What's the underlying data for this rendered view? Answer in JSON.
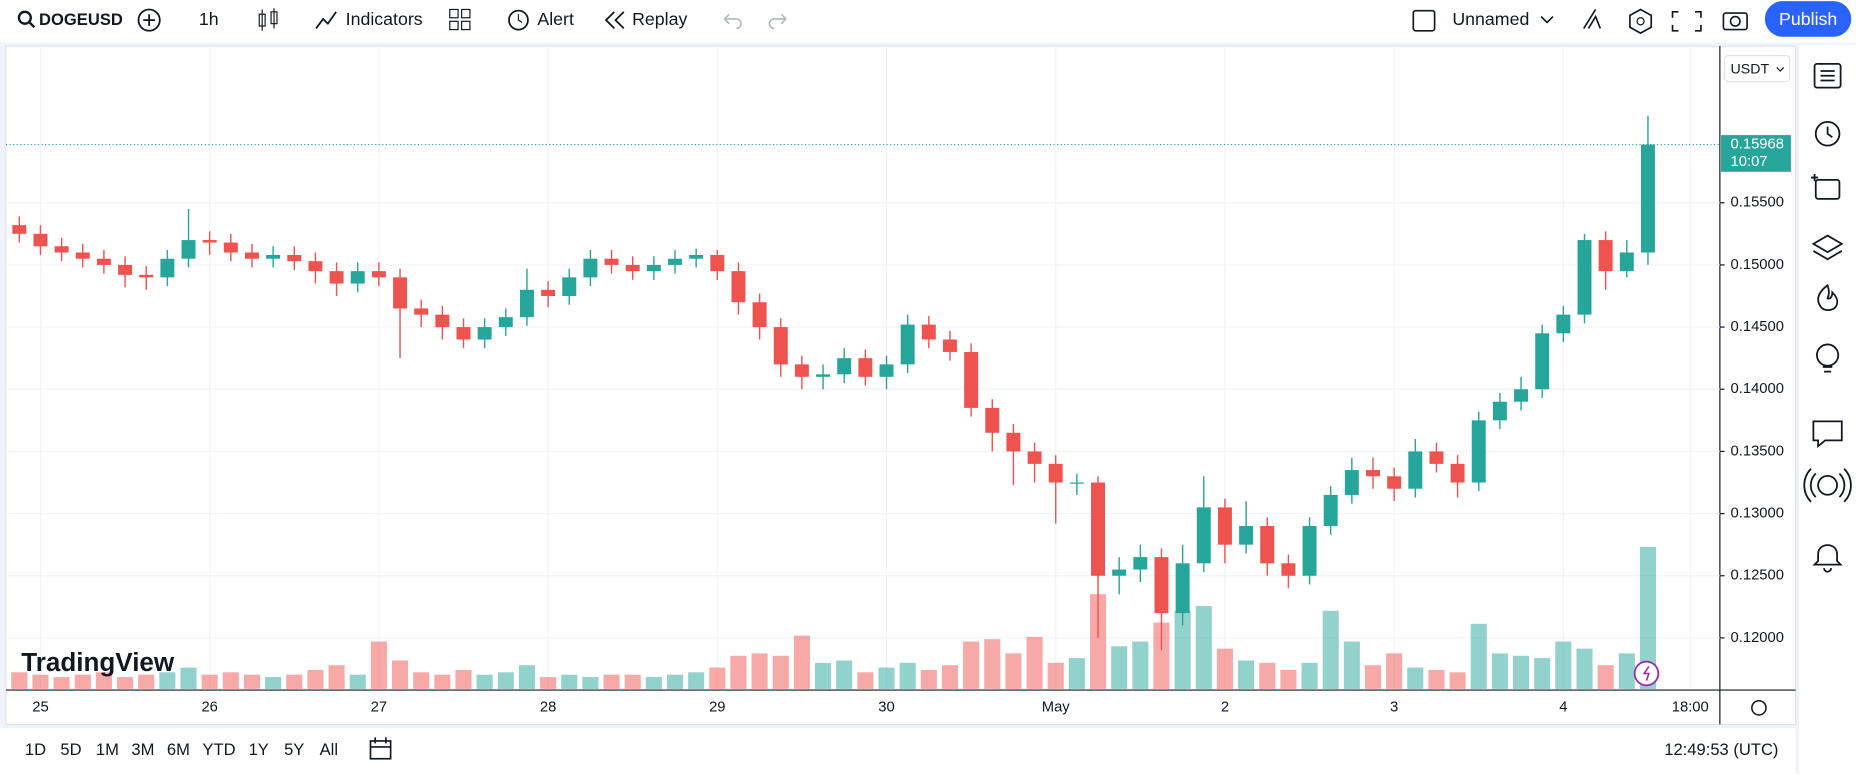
{
  "toolbar": {
    "symbol": "DOGEUSD",
    "interval": "1h",
    "indicators": "Indicators",
    "alert": "Alert",
    "replay": "Replay",
    "layout_name": "Unnamed",
    "publish": "Publish"
  },
  "chart_data": {
    "type": "candlestick",
    "currency": "USDT",
    "watermark": "TradingView",
    "x": [
      -3,
      0,
      3,
      6,
      9,
      12,
      15,
      18,
      21,
      24,
      27,
      30,
      33,
      36,
      39,
      42,
      45,
      48,
      51,
      54,
      57,
      60,
      63,
      66,
      69,
      72,
      75,
      78,
      81,
      84,
      87,
      90,
      93,
      96,
      99,
      102,
      105,
      108,
      111,
      114,
      117,
      120,
      123,
      126,
      129,
      132,
      135,
      138,
      141,
      144,
      147,
      150,
      153,
      156,
      159,
      162,
      165,
      168,
      171,
      174,
      177,
      180,
      183,
      186,
      189,
      192,
      195,
      198,
      201,
      204,
      207,
      210,
      213,
      216,
      219,
      222,
      225,
      228
    ],
    "open": [
      0.1532,
      0.1525,
      0.1515,
      0.151,
      0.1505,
      0.15,
      0.1492,
      0.149,
      0.1505,
      0.152,
      0.1518,
      0.151,
      0.1505,
      0.1508,
      0.1503,
      0.1495,
      0.1485,
      0.1495,
      0.149,
      0.1465,
      0.146,
      0.145,
      0.144,
      0.145,
      0.1458,
      0.148,
      0.1475,
      0.149,
      0.1505,
      0.15,
      0.1495,
      0.15,
      0.1505,
      0.1508,
      0.1495,
      0.147,
      0.145,
      0.142,
      0.141,
      0.1412,
      0.1425,
      0.141,
      0.142,
      0.1452,
      0.144,
      0.143,
      0.1385,
      0.1365,
      0.135,
      0.134,
      0.1325,
      0.1325,
      0.125,
      0.1255,
      0.1265,
      0.122,
      0.126,
      0.1305,
      0.1275,
      0.129,
      0.126,
      0.125,
      0.129,
      0.1315,
      0.1335,
      0.133,
      0.132,
      0.135,
      0.134,
      0.1325,
      0.1375,
      0.139,
      0.14,
      0.1445,
      0.146,
      0.152,
      0.1495,
      0.151
    ],
    "high": [
      0.1539,
      0.1532,
      0.1522,
      0.1517,
      0.1512,
      0.1507,
      0.1499,
      0.1512,
      0.1545,
      0.1527,
      0.1525,
      0.1517,
      0.1515,
      0.1515,
      0.151,
      0.1502,
      0.1502,
      0.1502,
      0.1497,
      0.1472,
      0.1467,
      0.1457,
      0.1457,
      0.1465,
      0.1497,
      0.1487,
      0.1497,
      0.1512,
      0.1512,
      0.1507,
      0.1507,
      0.1512,
      0.1513,
      0.1512,
      0.1502,
      0.1477,
      0.1457,
      0.1427,
      0.142,
      0.1433,
      0.1432,
      0.1427,
      0.146,
      0.1459,
      0.1447,
      0.1437,
      0.1392,
      0.1372,
      0.1357,
      0.1347,
      0.1332,
      0.133,
      0.1265,
      0.1275,
      0.1272,
      0.1275,
      0.133,
      0.1312,
      0.131,
      0.1297,
      0.1267,
      0.1297,
      0.1322,
      0.1345,
      0.1345,
      0.1337,
      0.136,
      0.1357,
      0.1347,
      0.1382,
      0.1397,
      0.141,
      0.1452,
      0.1467,
      0.1525,
      0.1527,
      0.152,
      0.162
    ],
    "low": [
      0.1518,
      0.1508,
      0.1503,
      0.1498,
      0.1493,
      0.1482,
      0.148,
      0.1483,
      0.1498,
      0.1508,
      0.1503,
      0.1498,
      0.1498,
      0.1496,
      0.1485,
      0.1475,
      0.1478,
      0.1483,
      0.1425,
      0.145,
      0.144,
      0.1433,
      0.1433,
      0.1443,
      0.1451,
      0.1466,
      0.1468,
      0.1483,
      0.1493,
      0.1488,
      0.1488,
      0.1493,
      0.1498,
      0.1488,
      0.146,
      0.144,
      0.141,
      0.14,
      0.14,
      0.1405,
      0.1403,
      0.14,
      0.1413,
      0.1433,
      0.1423,
      0.1378,
      0.135,
      0.1323,
      0.1325,
      0.1292,
      0.1315,
      0.12,
      0.1235,
      0.1245,
      0.119,
      0.121,
      0.1253,
      0.126,
      0.1268,
      0.125,
      0.124,
      0.1243,
      0.1283,
      0.1308,
      0.132,
      0.131,
      0.1313,
      0.1333,
      0.1313,
      0.1318,
      0.1368,
      0.1383,
      0.1393,
      0.1438,
      0.1453,
      0.148,
      0.149,
      0.15
    ],
    "close": [
      0.1525,
      0.1515,
      0.151,
      0.1505,
      0.15,
      0.1492,
      0.149,
      0.1505,
      0.152,
      0.1518,
      0.151,
      0.1505,
      0.1508,
      0.1503,
      0.1495,
      0.1485,
      0.1495,
      0.149,
      0.1465,
      0.146,
      0.145,
      0.144,
      0.145,
      0.1458,
      0.148,
      0.1475,
      0.149,
      0.1505,
      0.15,
      0.1495,
      0.15,
      0.1505,
      0.1508,
      0.1495,
      0.147,
      0.145,
      0.142,
      0.141,
      0.1412,
      0.1425,
      0.141,
      0.142,
      0.1452,
      0.144,
      0.143,
      0.1385,
      0.1365,
      0.135,
      0.134,
      0.1325,
      0.1325,
      0.125,
      0.1255,
      0.1265,
      0.122,
      0.126,
      0.1305,
      0.1275,
      0.129,
      0.126,
      0.125,
      0.129,
      0.1315,
      0.1335,
      0.133,
      0.132,
      0.135,
      0.134,
      0.1325,
      0.1375,
      0.139,
      0.14,
      0.1445,
      0.146,
      0.152,
      0.1495,
      0.151,
      0.15968
    ],
    "volume": [
      14,
      12,
      10,
      12,
      14,
      10,
      12,
      14,
      18,
      12,
      14,
      12,
      10,
      12,
      16,
      20,
      12,
      40,
      24,
      14,
      12,
      16,
      12,
      14,
      20,
      10,
      12,
      10,
      12,
      12,
      10,
      12,
      14,
      18,
      28,
      30,
      28,
      45,
      22,
      24,
      14,
      18,
      22,
      16,
      20,
      40,
      42,
      30,
      44,
      22,
      26,
      80,
      36,
      40,
      56,
      66,
      70,
      34,
      24,
      22,
      16,
      22,
      66,
      40,
      20,
      30,
      18,
      16,
      14,
      55,
      30,
      28,
      26,
      40,
      34,
      20,
      30,
      120
    ],
    "up_color": "#26a69a",
    "down_color": "#ef5350",
    "xlim": [
      -4.9,
      238.2
    ],
    "xticks": [
      {
        "value": 0,
        "label": "25"
      },
      {
        "value": 24,
        "label": "26"
      },
      {
        "value": 48,
        "label": "27"
      },
      {
        "value": 72,
        "label": "28"
      },
      {
        "value": 96,
        "label": "29"
      },
      {
        "value": 120,
        "label": "30"
      },
      {
        "value": 144,
        "label": "May"
      },
      {
        "value": 168,
        "label": "2"
      },
      {
        "value": 192,
        "label": "3"
      },
      {
        "value": 216,
        "label": "4"
      },
      {
        "value": 234,
        "label": "18:00"
      }
    ],
    "ylim": [
      0.1159,
      0.1675
    ],
    "yticks": [
      {
        "value": 0.12,
        "label": "0.12000"
      },
      {
        "value": 0.125,
        "label": "0.12500"
      },
      {
        "value": 0.13,
        "label": "0.13000"
      },
      {
        "value": 0.135,
        "label": "0.13500"
      },
      {
        "value": 0.14,
        "label": "0.14000"
      },
      {
        "value": 0.145,
        "label": "0.14500"
      },
      {
        "value": 0.15,
        "label": "0.15000"
      },
      {
        "value": 0.155,
        "label": "0.15500"
      }
    ],
    "grid": true,
    "last_price": {
      "value": 0.15968,
      "label": "0.15968"
    },
    "countdown": "10:07"
  },
  "bottom_bar": {
    "ranges": [
      "1D",
      "5D",
      "1M",
      "3M",
      "6M",
      "YTD",
      "1Y",
      "5Y",
      "All"
    ],
    "clock": "12:49:53 (UTC)"
  }
}
